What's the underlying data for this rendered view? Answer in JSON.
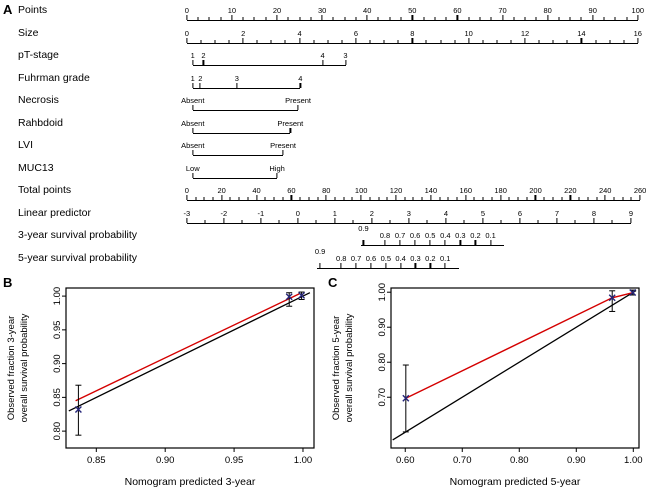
{
  "figure": {
    "panel_a_label": "A",
    "panel_b_label": "B",
    "panel_c_label": "C"
  },
  "chart_data": [
    {
      "type": "table",
      "subtype": "nomogram",
      "rows": [
        {
          "label": "Points",
          "type": "numeric",
          "min": 0,
          "max": 100,
          "step": 10,
          "minor_per_step": 4,
          "span": [
            0.004,
            0.993
          ]
        },
        {
          "label": "Size",
          "type": "numeric",
          "min": 0,
          "max": 16,
          "step": 2,
          "minor_per_step": 4,
          "span": [
            0.004,
            0.993
          ]
        },
        {
          "label": "pT-stage",
          "type": "category",
          "span": [
            0.017,
            0.352
          ],
          "ticks": [
            {
              "label": "1",
              "pos": 0
            },
            {
              "label": "2",
              "pos": 0.07
            },
            {
              "label": "4",
              "pos": 0.85
            },
            {
              "label": "3",
              "pos": 1
            }
          ]
        },
        {
          "label": "Fuhrman grade",
          "type": "category",
          "span": [
            0.017,
            0.253
          ],
          "ticks": [
            {
              "label": "1",
              "pos": 0
            },
            {
              "label": "2",
              "pos": 0.07
            },
            {
              "label": "3",
              "pos": 0.41
            },
            {
              "label": "4",
              "pos": 1
            }
          ]
        },
        {
          "label": "Necrosis",
          "type": "category",
          "span": [
            0.017,
            0.248
          ],
          "ticks": [
            {
              "label": "Absent",
              "pos": 0
            },
            {
              "label": "Present",
              "pos": 1
            }
          ]
        },
        {
          "label": "Rahbdoid",
          "type": "category",
          "span": [
            0.017,
            0.231
          ],
          "ticks": [
            {
              "label": "Absent",
              "pos": 0
            },
            {
              "label": "Present",
              "pos": 1
            }
          ]
        },
        {
          "label": "LVI",
          "type": "category",
          "span": [
            0.017,
            0.215
          ],
          "ticks": [
            {
              "label": "Absent",
              "pos": 0
            },
            {
              "label": "Present",
              "pos": 1
            }
          ]
        },
        {
          "label": "MUC13",
          "type": "category",
          "span": [
            0.017,
            0.202
          ],
          "ticks": [
            {
              "label": "Low",
              "pos": 0
            },
            {
              "label": "High",
              "pos": 1
            }
          ]
        },
        {
          "label": "Total points",
          "type": "numeric",
          "min": 0,
          "max": 260,
          "step": 20,
          "minor_per_step": 4,
          "span": [
            0.004,
            0.998
          ]
        },
        {
          "label": "Linear predictor",
          "type": "numeric",
          "min": -3,
          "max": 9,
          "step": 1,
          "minor_per_step": 2,
          "span": [
            0.004,
            0.978
          ]
        },
        {
          "label": "3-year survival probability",
          "type": "category",
          "span": [
            0.385,
            0.7
          ],
          "ticks": [
            {
              "label": "0.9",
              "pos": 0.02,
              "raise": true
            },
            {
              "label": "0.8",
              "pos": 0.17
            },
            {
              "label": "0.7",
              "pos": 0.275
            },
            {
              "label": "0.6",
              "pos": 0.38
            },
            {
              "label": "0.5",
              "pos": 0.485
            },
            {
              "label": "0.4",
              "pos": 0.59
            },
            {
              "label": "0.3",
              "pos": 0.695
            },
            {
              "label": "0.2",
              "pos": 0.8
            },
            {
              "label": "0.1",
              "pos": 0.905
            }
          ]
        },
        {
          "label": "5-year survival probability",
          "type": "category",
          "span": [
            0.29,
            0.6
          ],
          "ticks": [
            {
              "label": "0.9",
              "pos": 0.02,
              "raise": true
            },
            {
              "label": "0.8",
              "pos": 0.17
            },
            {
              "label": "0.7",
              "pos": 0.275
            },
            {
              "label": "0.6",
              "pos": 0.38
            },
            {
              "label": "0.5",
              "pos": 0.485
            },
            {
              "label": "0.4",
              "pos": 0.59
            },
            {
              "label": "0.3",
              "pos": 0.695
            },
            {
              "label": "0.2",
              "pos": 0.8
            },
            {
              "label": "0.1",
              "pos": 0.905
            }
          ]
        }
      ]
    },
    {
      "type": "line",
      "panel": "B",
      "xlabel": "Nomogram predicted 3-year",
      "ylabel_lines": [
        "Observed fraction 3-year",
        "overall survival probability"
      ],
      "xlim": [
        0.828,
        1.008
      ],
      "ylim": [
        0.775,
        1.012
      ],
      "xticks": [
        0.85,
        0.9,
        0.95,
        1.0
      ],
      "yticks": [
        0.8,
        0.85,
        0.9,
        0.95,
        1.0
      ],
      "ideal_line": {
        "color": "#000000",
        "points": [
          [
            0.83,
            0.83
          ],
          [
            1.005,
            1.005
          ]
        ]
      },
      "calibration_line": {
        "color": "#d40000",
        "points": [
          [
            0.835,
            0.845
          ],
          [
            0.998,
            1.004
          ]
        ]
      },
      "points": [
        {
          "x": 0.837,
          "y": 0.832,
          "err_low": 0.794,
          "err_high": 0.868
        },
        {
          "x": 0.99,
          "y": 0.999,
          "err_low": 0.985,
          "err_high": 1.005
        },
        {
          "x": 0.999,
          "y": 1.001,
          "err_low": 0.995,
          "err_high": 1.006
        }
      ],
      "point_color": "#26267a",
      "error_bar_color": "#000000"
    },
    {
      "type": "line",
      "panel": "C",
      "xlabel": "Nomogram predicted 5-year",
      "ylabel_lines": [
        "Observed fraction 5-year",
        "overall survival probability"
      ],
      "xlim": [
        0.575,
        1.01
      ],
      "ylim": [
        0.555,
        1.012
      ],
      "xticks": [
        0.6,
        0.7,
        0.8,
        0.9,
        1.0
      ],
      "yticks": [
        0.7,
        0.8,
        0.9,
        1.0
      ],
      "ideal_line": {
        "color": "#000000",
        "points": [
          [
            0.578,
            0.578
          ],
          [
            1.005,
            1.005
          ]
        ]
      },
      "calibration_line": {
        "color": "#d40000",
        "points": [
          [
            0.601,
            0.697
          ],
          [
            0.963,
            0.984
          ],
          [
            1.0,
            0.999
          ]
        ]
      },
      "points": [
        {
          "x": 0.601,
          "y": 0.697,
          "err_low": 0.601,
          "err_high": 0.792
        },
        {
          "x": 0.963,
          "y": 0.984,
          "err_low": 0.945,
          "err_high": 1.004
        },
        {
          "x": 0.999,
          "y": 0.999,
          "err_low": 0.992,
          "err_high": 1.006
        }
      ],
      "point_color": "#26267a",
      "error_bar_color": "#000000"
    }
  ]
}
